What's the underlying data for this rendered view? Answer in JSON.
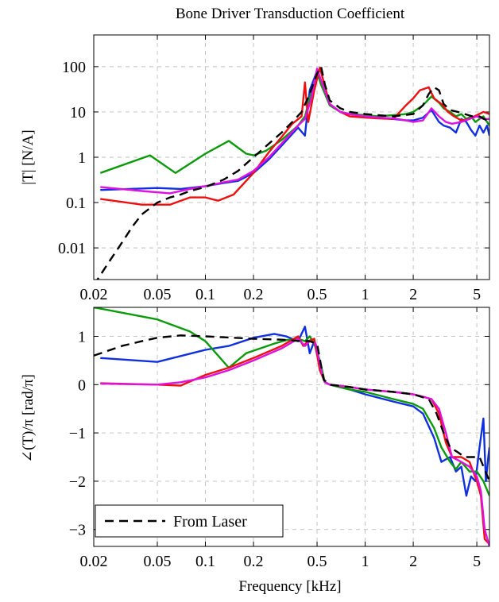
{
  "chart_data": [
    {
      "type": "line",
      "title": "Bone Driver Transduction Coefficient",
      "xlabel": "",
      "ylabel": "|T|  [N/A]",
      "xscale": "log",
      "yscale": "log",
      "xlim": [
        0.02,
        6
      ],
      "ylim": [
        0.002,
        500
      ],
      "xticks": [
        0.02,
        0.05,
        0.1,
        0.2,
        0.5,
        1,
        2,
        5
      ],
      "xticklabels": [
        "0.02",
        "0.05",
        "0.1",
        "0.2",
        "0.5",
        "1",
        "2",
        "5"
      ],
      "yticks": [
        0.01,
        0.1,
        1,
        10,
        100
      ],
      "yticklabels": [
        "0.01",
        "0.1",
        "1",
        "10",
        "100"
      ],
      "grid": true,
      "series": [
        {
          "color": "#1030e0",
          "dashed": false,
          "x": [
            0.022,
            0.05,
            0.07,
            0.1,
            0.13,
            0.16,
            0.2,
            0.25,
            0.3,
            0.38,
            0.42,
            0.45,
            0.5,
            0.53,
            0.6,
            0.7,
            0.8,
            1.0,
            1.2,
            1.5,
            1.8,
            2.0,
            2.3,
            2.6,
            2.9,
            3.1,
            3.4,
            3.7,
            4.0,
            4.3,
            4.6,
            4.9,
            5.2,
            5.5,
            5.8,
            6.0
          ],
          "y": [
            0.19,
            0.21,
            0.2,
            0.23,
            0.27,
            0.3,
            0.45,
            0.9,
            1.8,
            4.5,
            3.0,
            30,
            80,
            45,
            14,
            10,
            9,
            8,
            7.5,
            7.0,
            6.5,
            6.5,
            7.5,
            11,
            6,
            5,
            4.5,
            3.5,
            7,
            6,
            4,
            3,
            5,
            3.5,
            5,
            3
          ]
        },
        {
          "color": "#0a9a0a",
          "dashed": false,
          "x": [
            0.022,
            0.045,
            0.065,
            0.1,
            0.14,
            0.18,
            0.2,
            0.24,
            0.3,
            0.38,
            0.42,
            0.45,
            0.5,
            0.53,
            0.6,
            0.7,
            0.8,
            1.0,
            1.2,
            1.5,
            1.8,
            2.0,
            2.3,
            2.6,
            2.9,
            3.1,
            3.4,
            3.7,
            4.0,
            4.3,
            4.6,
            4.9,
            5.2,
            5.5,
            5.8,
            6.0
          ],
          "y": [
            0.45,
            1.1,
            0.45,
            1.2,
            2.3,
            1.2,
            1.1,
            1.4,
            2.4,
            5.0,
            8.0,
            20,
            75,
            40,
            14,
            10,
            9,
            8.5,
            8.0,
            8.5,
            9,
            10,
            14,
            22,
            16,
            12,
            10,
            8,
            9,
            7,
            8,
            6,
            7,
            8,
            6,
            5
          ]
        },
        {
          "color": "#ee1010",
          "dashed": false,
          "x": [
            0.022,
            0.04,
            0.06,
            0.08,
            0.1,
            0.12,
            0.15,
            0.2,
            0.25,
            0.3,
            0.35,
            0.4,
            0.42,
            0.44,
            0.48,
            0.52,
            0.6,
            0.7,
            0.8,
            1.0,
            1.2,
            1.5,
            1.8,
            2.0,
            2.2,
            2.5,
            2.7,
            3.0,
            3.3,
            3.6,
            4.0,
            4.5,
            5.0,
            5.5,
            6.0
          ],
          "y": [
            0.12,
            0.09,
            0.09,
            0.13,
            0.13,
            0.11,
            0.15,
            0.45,
            1.3,
            2.8,
            5.5,
            8,
            45,
            6,
            30,
            95,
            15,
            10,
            8,
            7.5,
            7.2,
            7.0,
            14,
            20,
            30,
            35,
            20,
            15,
            10,
            8,
            6.5,
            7,
            8.5,
            10,
            9
          ]
        },
        {
          "color": "#e010e0",
          "dashed": false,
          "x": [
            0.022,
            0.04,
            0.06,
            0.08,
            0.1,
            0.13,
            0.16,
            0.2,
            0.25,
            0.3,
            0.38,
            0.42,
            0.46,
            0.5,
            0.53,
            0.6,
            0.7,
            0.8,
            1.0,
            1.2,
            1.5,
            1.8,
            2.0,
            2.3,
            2.6,
            2.9,
            3.2,
            3.5,
            4.0,
            4.5,
            5.0,
            5.5,
            6.0
          ],
          "y": [
            0.22,
            0.18,
            0.16,
            0.2,
            0.23,
            0.28,
            0.32,
            0.5,
            1.0,
            2.0,
            5.0,
            7,
            20,
            90,
            50,
            15,
            10,
            9,
            8,
            7.5,
            7.2,
            6.5,
            6,
            6.5,
            12,
            8,
            6,
            5.5,
            6,
            7,
            8,
            7,
            7
          ]
        },
        {
          "name": "From Laser",
          "color": "#000000",
          "dashed": true,
          "x": [
            0.02,
            0.025,
            0.03,
            0.035,
            0.04,
            0.05,
            0.06,
            0.07,
            0.08,
            0.1,
            0.13,
            0.16,
            0.2,
            0.25,
            0.3,
            0.35,
            0.4,
            0.45,
            0.5,
            0.53,
            0.56,
            0.6,
            0.7,
            0.8,
            1.0,
            1.2,
            1.5,
            2.0,
            2.3,
            2.5,
            2.7,
            2.9,
            3.1,
            3.4,
            3.8,
            4.2,
            4.7,
            5.2,
            6.0
          ],
          "y": [
            0.0015,
            0.005,
            0.013,
            0.03,
            0.055,
            0.1,
            0.13,
            0.15,
            0.18,
            0.22,
            0.32,
            0.5,
            1.0,
            2.0,
            3.5,
            6,
            10,
            25,
            70,
            100,
            40,
            18,
            12,
            10,
            9,
            8.5,
            8,
            9,
            14,
            25,
            35,
            30,
            15,
            11,
            10,
            9,
            8,
            8,
            6
          ]
        }
      ]
    },
    {
      "type": "line",
      "title": "",
      "xlabel": "Frequency [kHz]",
      "ylabel": "∠(T)/π  [rad/π]",
      "xscale": "log",
      "yscale": "linear",
      "xlim": [
        0.02,
        6
      ],
      "ylim": [
        -3.35,
        1.6
      ],
      "xticks": [
        0.02,
        0.05,
        0.1,
        0.2,
        0.5,
        1,
        2,
        5
      ],
      "xticklabels": [
        "0.02",
        "0.05",
        "0.1",
        "0.2",
        "0.5",
        "1",
        "2",
        "5"
      ],
      "yticks": [
        -3,
        -2,
        -1,
        0,
        1
      ],
      "yticklabels": [
        "−3",
        "−2",
        "−1",
        "0",
        "1"
      ],
      "grid": true,
      "legend": {
        "position": "bottom-left",
        "entries": [
          "From Laser"
        ]
      },
      "series": [
        {
          "color": "#1030e0",
          "dashed": false,
          "x": [
            0.022,
            0.05,
            0.1,
            0.14,
            0.2,
            0.27,
            0.32,
            0.38,
            0.42,
            0.45,
            0.48,
            0.52,
            0.56,
            0.6,
            0.8,
            1.0,
            1.5,
            2.0,
            2.3,
            2.7,
            3.0,
            3.4,
            3.7,
            4.0,
            4.3,
            4.6,
            4.9,
            5.2,
            5.5,
            5.7,
            5.9,
            6.0
          ],
          "y": [
            0.55,
            0.47,
            0.72,
            0.8,
            0.97,
            1.05,
            1.0,
            0.9,
            1.2,
            0.65,
            0.9,
            0.35,
            0.05,
            0.0,
            -0.1,
            -0.2,
            -0.35,
            -0.45,
            -0.6,
            -1.1,
            -1.6,
            -1.5,
            -1.8,
            -1.7,
            -2.3,
            -1.9,
            -2.0,
            -1.3,
            -0.7,
            -2.0,
            -1.5,
            -1.3
          ]
        },
        {
          "color": "#0a9a0a",
          "dashed": false,
          "x": [
            0.02,
            0.05,
            0.08,
            0.1,
            0.14,
            0.18,
            0.22,
            0.27,
            0.32,
            0.38,
            0.42,
            0.45,
            0.48,
            0.52,
            0.56,
            0.6,
            0.8,
            1.0,
            1.5,
            2.0,
            2.3,
            2.7,
            3.0,
            3.4,
            3.7,
            4.0,
            4.5,
            5.0,
            5.5,
            6.0
          ],
          "y": [
            1.6,
            1.35,
            1.1,
            0.9,
            0.35,
            0.65,
            0.75,
            0.85,
            0.92,
            0.95,
            0.9,
            1.0,
            0.85,
            0.5,
            0.05,
            0.0,
            -0.1,
            -0.15,
            -0.3,
            -0.4,
            -0.5,
            -0.9,
            -1.3,
            -1.6,
            -1.75,
            -1.6,
            -1.8,
            -1.8,
            -2.0,
            -2.3
          ]
        },
        {
          "color": "#ee1010",
          "dashed": false,
          "x": [
            0.022,
            0.05,
            0.07,
            0.1,
            0.14,
            0.2,
            0.3,
            0.38,
            0.41,
            0.44,
            0.48,
            0.52,
            0.56,
            0.6,
            0.8,
            1.0,
            1.5,
            2.0,
            2.3,
            2.6,
            2.9,
            3.2,
            3.5,
            4.0,
            4.5,
            5.0,
            5.3,
            5.6,
            6.0
          ],
          "y": [
            0.03,
            0.0,
            -0.02,
            0.2,
            0.35,
            0.55,
            0.8,
            1.0,
            0.8,
            0.9,
            0.95,
            0.3,
            0.05,
            0.0,
            -0.05,
            -0.1,
            -0.15,
            -0.2,
            -0.25,
            -0.3,
            -0.6,
            -1.2,
            -1.5,
            -1.5,
            -1.6,
            -2.0,
            -2.3,
            -3.2,
            -3.3
          ]
        },
        {
          "color": "#e010e0",
          "dashed": false,
          "x": [
            0.022,
            0.05,
            0.07,
            0.1,
            0.14,
            0.2,
            0.3,
            0.38,
            0.42,
            0.45,
            0.49,
            0.53,
            0.56,
            0.6,
            0.8,
            1.0,
            1.5,
            2.0,
            2.3,
            2.6,
            2.9,
            3.2,
            3.5,
            4.0,
            4.5,
            5.0,
            5.3,
            5.6,
            6.0
          ],
          "y": [
            0.02,
            0.0,
            0.05,
            0.15,
            0.3,
            0.5,
            0.75,
            0.95,
            0.8,
            0.9,
            0.85,
            0.3,
            0.05,
            0.0,
            -0.05,
            -0.1,
            -0.15,
            -0.2,
            -0.25,
            -0.3,
            -0.5,
            -1.0,
            -1.5,
            -1.6,
            -1.7,
            -1.9,
            -2.2,
            -3.0,
            -3.35
          ]
        },
        {
          "name": "From Laser",
          "color": "#000000",
          "dashed": true,
          "x": [
            0.02,
            0.03,
            0.04,
            0.05,
            0.07,
            0.1,
            0.15,
            0.2,
            0.3,
            0.4,
            0.45,
            0.5,
            0.55,
            0.6,
            0.8,
            1.0,
            1.5,
            2.0,
            2.5,
            2.8,
            3.1,
            3.4,
            3.8,
            4.2,
            4.7,
            5.2,
            6.0
          ],
          "y": [
            0.6,
            0.8,
            0.9,
            0.97,
            1.02,
            1.0,
            0.97,
            0.95,
            0.93,
            0.9,
            0.9,
            0.85,
            0.1,
            0.0,
            -0.05,
            -0.1,
            -0.15,
            -0.2,
            -0.3,
            -0.6,
            -1.0,
            -1.3,
            -1.4,
            -1.5,
            -1.5,
            -1.5,
            -2.0
          ]
        }
      ]
    }
  ]
}
